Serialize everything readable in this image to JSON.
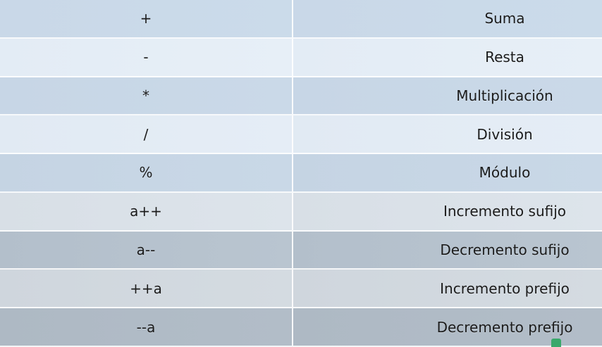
{
  "table": {
    "rows": [
      {
        "operator": "+",
        "description": "Suma"
      },
      {
        "operator": "-",
        "description": "Resta"
      },
      {
        "operator": "*",
        "description": "Multiplicación"
      },
      {
        "operator": "/",
        "description": "División"
      },
      {
        "operator": "%",
        "description": "Módulo"
      },
      {
        "operator": "a++",
        "description": "Incremento sufijo"
      },
      {
        "operator": "a--",
        "description": "Decremento sufijo"
      },
      {
        "operator": "++a",
        "description": "Incremento prefijo"
      },
      {
        "operator": "--a",
        "description": "Decremento prefijo"
      }
    ]
  },
  "colors": {
    "text": "#1b1b1b",
    "row_light": "#e3ecf5",
    "row_dark": "#c9d8e8",
    "divider": "#ffffff",
    "badge": "#3aa86b"
  },
  "icons": {
    "corner": "green-badge-icon"
  }
}
